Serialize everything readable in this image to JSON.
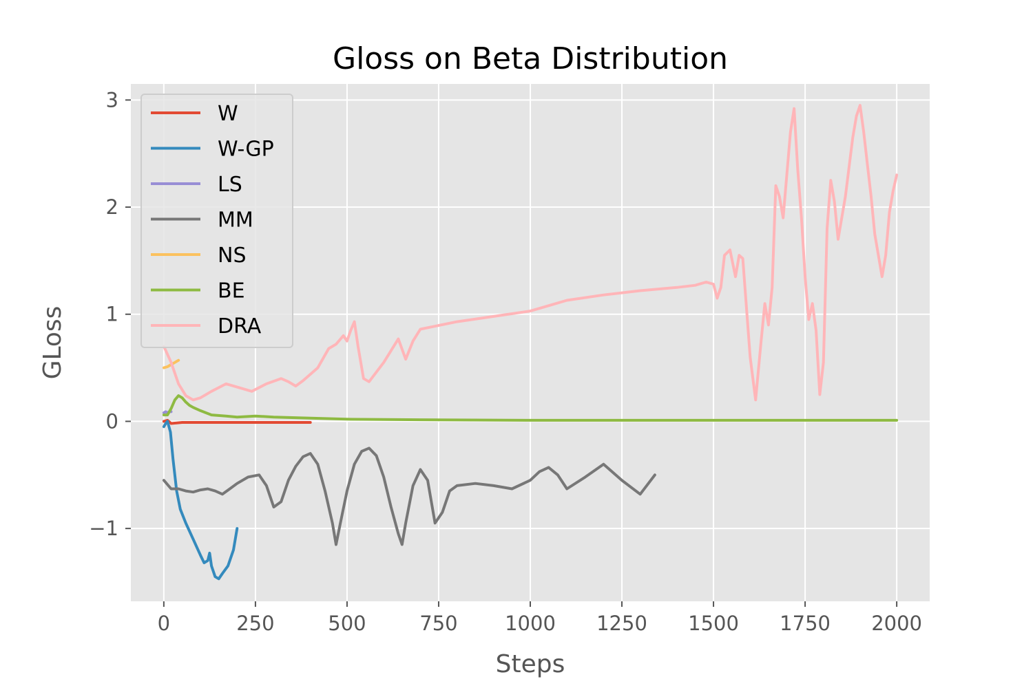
{
  "chart_data": {
    "type": "line",
    "title": "Gloss on Beta Distribution",
    "xlabel": "Steps",
    "ylabel": "GLoss",
    "xlim": [
      -90,
      2090
    ],
    "ylim": [
      -1.68,
      3.15
    ],
    "xticks": [
      0,
      250,
      500,
      750,
      1000,
      1250,
      1500,
      1750,
      2000
    ],
    "xtick_labels": [
      "0",
      "250",
      "500",
      "750",
      "1000",
      "1250",
      "1500",
      "1750",
      "2000"
    ],
    "yticks": [
      -1,
      0,
      1,
      2,
      3
    ],
    "ytick_labels": [
      "−1",
      "0",
      "1",
      "2",
      "3"
    ],
    "grid": true,
    "legend_position": "top-left",
    "series": [
      {
        "name": "W",
        "color": "#e24a33",
        "x": [
          0,
          10,
          20,
          50,
          100,
          150,
          200,
          250,
          300,
          350,
          400
        ],
        "y": [
          0.0,
          0.01,
          -0.02,
          -0.01,
          -0.01,
          -0.01,
          -0.01,
          -0.01,
          -0.01,
          -0.01,
          -0.01
        ]
      },
      {
        "name": "W-GP",
        "color": "#348abd",
        "x": [
          0,
          5,
          10,
          18,
          25,
          35,
          45,
          60,
          80,
          100,
          110,
          120,
          125,
          130,
          140,
          150,
          160,
          175,
          190,
          200
        ],
        "y": [
          -0.05,
          -0.02,
          0.0,
          -0.1,
          -0.35,
          -0.65,
          -0.82,
          -0.95,
          -1.1,
          -1.25,
          -1.32,
          -1.3,
          -1.23,
          -1.35,
          -1.45,
          -1.47,
          -1.42,
          -1.35,
          -1.2,
          -1.0
        ]
      },
      {
        "name": "LS",
        "color": "#988ed5",
        "x": [
          0,
          5,
          10,
          15,
          20
        ],
        "y": [
          0.08,
          0.09,
          0.08,
          0.09,
          0.09
        ]
      },
      {
        "name": "MM",
        "color": "#777777",
        "x": [
          0,
          20,
          40,
          60,
          80,
          100,
          120,
          140,
          160,
          180,
          200,
          230,
          260,
          280,
          300,
          320,
          340,
          360,
          380,
          400,
          420,
          440,
          460,
          470,
          480,
          500,
          520,
          540,
          560,
          580,
          600,
          620,
          640,
          650,
          660,
          680,
          700,
          720,
          740,
          760,
          780,
          800,
          850,
          900,
          950,
          1000,
          1025,
          1050,
          1075,
          1100,
          1150,
          1200,
          1250,
          1300,
          1340
        ],
        "y": [
          -0.55,
          -0.63,
          -0.63,
          -0.65,
          -0.66,
          -0.64,
          -0.63,
          -0.65,
          -0.68,
          -0.63,
          -0.58,
          -0.52,
          -0.5,
          -0.6,
          -0.8,
          -0.75,
          -0.55,
          -0.42,
          -0.33,
          -0.3,
          -0.4,
          -0.65,
          -0.95,
          -1.15,
          -0.98,
          -0.65,
          -0.4,
          -0.28,
          -0.25,
          -0.32,
          -0.52,
          -0.8,
          -1.05,
          -1.15,
          -0.95,
          -0.6,
          -0.45,
          -0.55,
          -0.95,
          -0.85,
          -0.65,
          -0.6,
          -0.58,
          -0.6,
          -0.63,
          -0.55,
          -0.47,
          -0.43,
          -0.5,
          -0.63,
          -0.52,
          -0.4,
          -0.55,
          -0.68,
          -0.5
        ]
      },
      {
        "name": "NS",
        "color": "#fbc15e",
        "x": [
          0,
          10,
          20,
          30,
          40
        ],
        "y": [
          0.5,
          0.51,
          0.53,
          0.55,
          0.57
        ]
      },
      {
        "name": "BE",
        "color": "#8eba42",
        "x": [
          0,
          10,
          20,
          30,
          40,
          50,
          60,
          70,
          80,
          100,
          130,
          170,
          200,
          250,
          300,
          400,
          500,
          700,
          1000,
          1500,
          2000
        ],
        "y": [
          0.06,
          0.06,
          0.12,
          0.2,
          0.24,
          0.22,
          0.18,
          0.15,
          0.13,
          0.1,
          0.06,
          0.05,
          0.04,
          0.05,
          0.04,
          0.03,
          0.02,
          0.015,
          0.01,
          0.01,
          0.01
        ]
      },
      {
        "name": "DRA",
        "color": "#ffb5b8",
        "x": [
          0,
          20,
          40,
          60,
          80,
          100,
          130,
          170,
          200,
          240,
          280,
          320,
          340,
          360,
          380,
          420,
          450,
          470,
          490,
          500,
          510,
          520,
          530,
          545,
          560,
          600,
          640,
          660,
          680,
          700,
          800,
          900,
          1000,
          1050,
          1100,
          1200,
          1300,
          1400,
          1450,
          1480,
          1500,
          1510,
          1520,
          1530,
          1545,
          1560,
          1570,
          1580,
          1600,
          1615,
          1630,
          1640,
          1650,
          1660,
          1670,
          1680,
          1690,
          1700,
          1710,
          1720,
          1730,
          1740,
          1750,
          1760,
          1770,
          1780,
          1790,
          1800,
          1810,
          1820,
          1830,
          1840,
          1860,
          1880,
          1890,
          1900,
          1910,
          1920,
          1930,
          1940,
          1960,
          1970,
          1980,
          1990,
          2000
        ],
        "y": [
          0.7,
          0.55,
          0.35,
          0.24,
          0.2,
          0.22,
          0.28,
          0.35,
          0.32,
          0.28,
          0.35,
          0.4,
          0.37,
          0.33,
          0.38,
          0.5,
          0.68,
          0.72,
          0.8,
          0.75,
          0.85,
          0.93,
          0.7,
          0.4,
          0.37,
          0.55,
          0.77,
          0.58,
          0.75,
          0.86,
          0.93,
          0.98,
          1.03,
          1.08,
          1.13,
          1.18,
          1.22,
          1.25,
          1.27,
          1.3,
          1.28,
          1.15,
          1.25,
          1.55,
          1.6,
          1.35,
          1.55,
          1.52,
          0.6,
          0.2,
          0.75,
          1.1,
          0.9,
          1.25,
          2.2,
          2.1,
          1.9,
          2.3,
          2.7,
          2.92,
          2.35,
          1.9,
          1.35,
          0.95,
          1.1,
          0.85,
          0.25,
          0.55,
          1.8,
          2.25,
          2.05,
          1.7,
          2.1,
          2.65,
          2.85,
          2.95,
          2.7,
          2.4,
          2.1,
          1.75,
          1.35,
          1.55,
          1.95,
          2.15,
          2.3
        ]
      }
    ]
  }
}
